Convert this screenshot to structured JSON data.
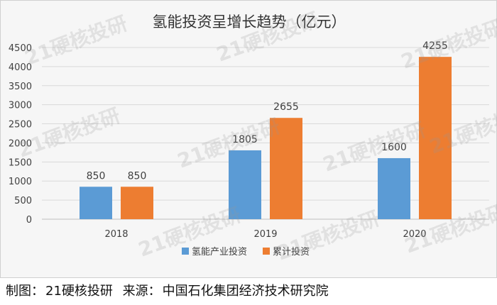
{
  "chart_data": {
    "type": "bar",
    "title": "氢能投资呈增长趋势（亿元）",
    "categories": [
      "2018",
      "2019",
      "2020"
    ],
    "series": [
      {
        "name": "氢能产业投资",
        "values": [
          850,
          1805,
          1600
        ],
        "color": "#5b9bd5"
      },
      {
        "name": "累计投资",
        "values": [
          850,
          2655,
          4255
        ],
        "color": "#ed7d31"
      }
    ],
    "ylim": [
      0,
      4500
    ],
    "yticks": [
      0,
      500,
      1000,
      1500,
      2000,
      2500,
      3000,
      3500,
      4000,
      4500
    ],
    "grid": true,
    "legend": "bottom"
  },
  "watermark": "21硬核投研",
  "footer": {
    "maker_label": "制图：",
    "maker": "21硬核投研",
    "source_label": "来源：",
    "source": "中国石化集团经济技术研究院"
  }
}
